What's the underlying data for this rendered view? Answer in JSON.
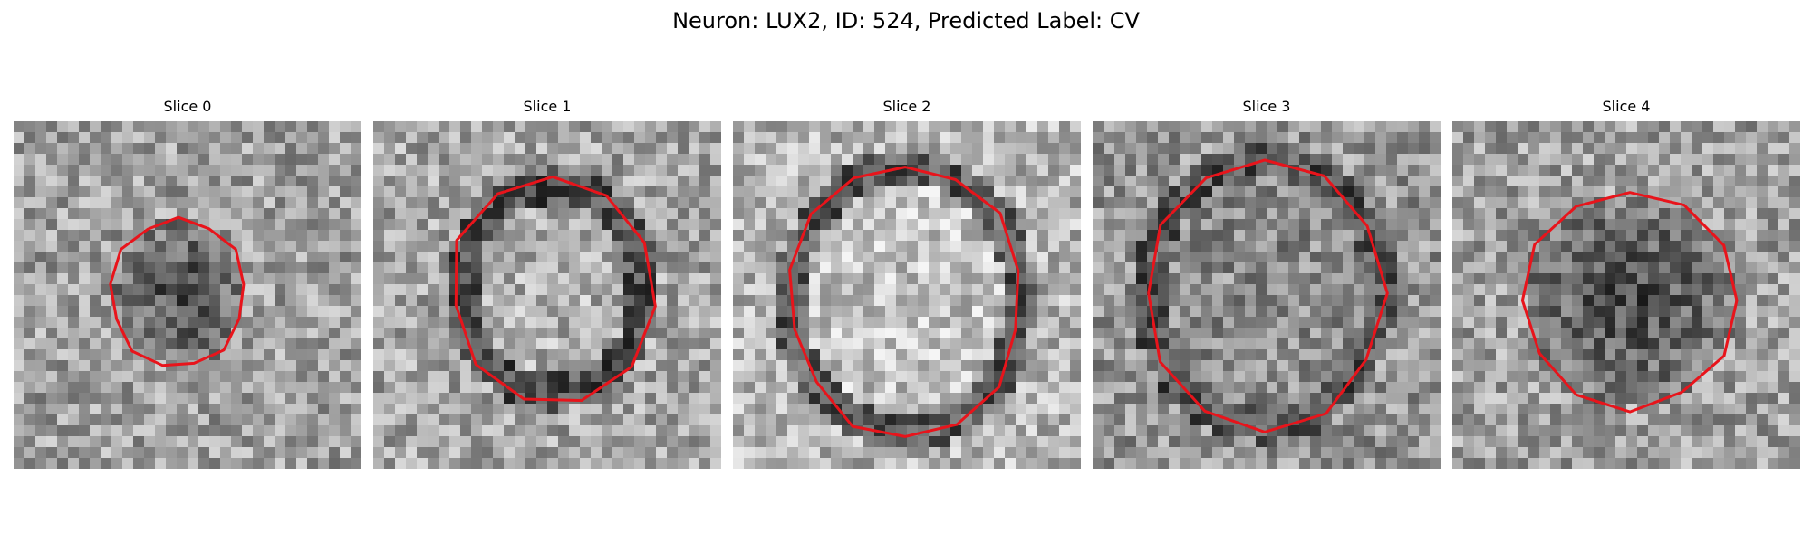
{
  "figure": {
    "title": "Neuron: LUX2, ID: 524, Predicted Label: CV"
  },
  "panels": [
    {
      "title": "Slice 0",
      "tone": "dark",
      "seed": 11
    },
    {
      "title": "Slice 1",
      "tone": "ring",
      "seed": 23
    },
    {
      "title": "Slice 2",
      "tone": "light",
      "seed": 37
    },
    {
      "title": "Slice 3",
      "tone": "mid",
      "seed": 51
    },
    {
      "title": "Slice 4",
      "tone": "dark",
      "seed": 67
    }
  ],
  "colors": {
    "contour": "#e8141b",
    "background": "#ffffff"
  }
}
